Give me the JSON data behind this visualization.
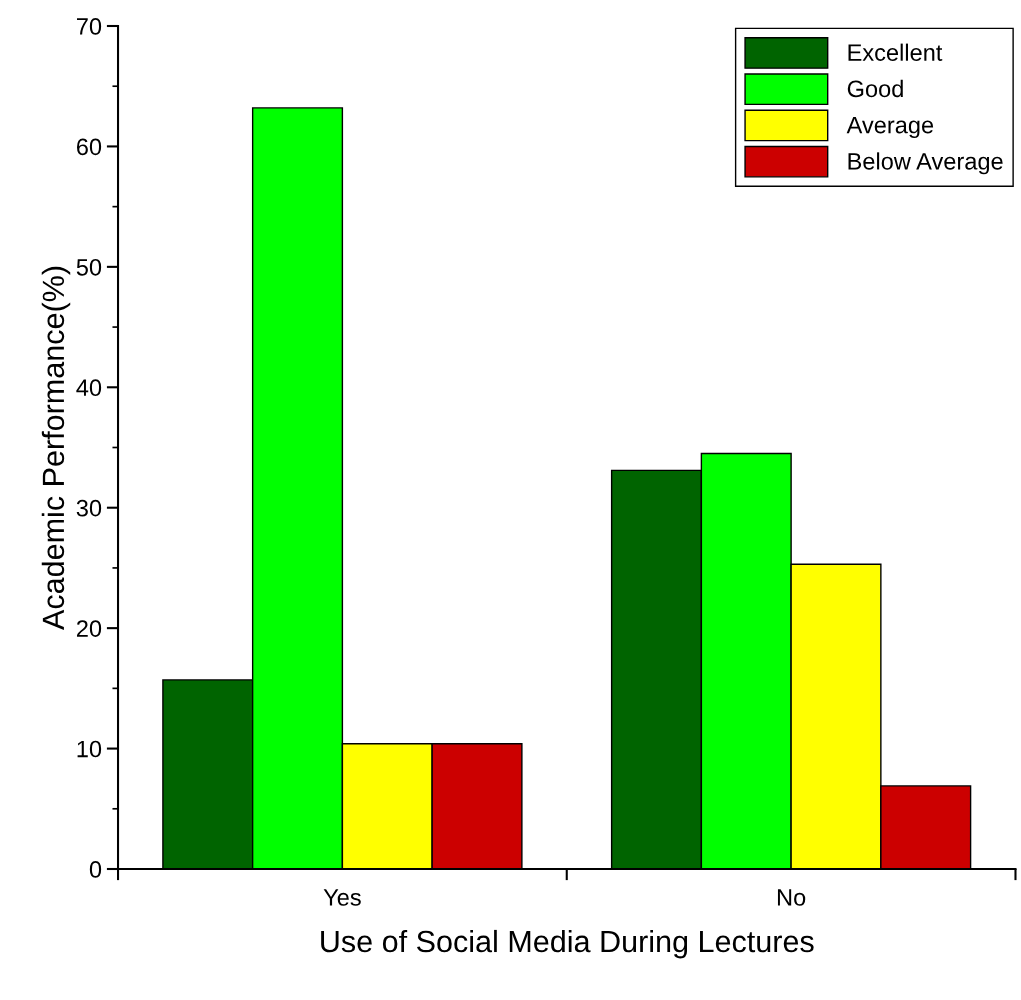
{
  "chart_data": {
    "type": "bar",
    "xlabel": "Use of Social Media During Lectures",
    "ylabel": "Academic Performance(%)",
    "categories": [
      "Yes",
      "No"
    ],
    "series": [
      {
        "name": "Excellent",
        "color": "#006400",
        "values": [
          15.7,
          33.1
        ]
      },
      {
        "name": "Good",
        "color": "#00ff00",
        "values": [
          63.2,
          34.5
        ]
      },
      {
        "name": "Average",
        "color": "#ffff00",
        "values": [
          10.4,
          25.3
        ]
      },
      {
        "name": "Below Average",
        "color": "#cc0000",
        "values": [
          10.4,
          6.9
        ]
      }
    ],
    "ylim": [
      0,
      70
    ],
    "yticks": [
      0,
      10,
      20,
      30,
      40,
      50,
      60,
      70
    ],
    "grid": false,
    "legend": "top right"
  }
}
